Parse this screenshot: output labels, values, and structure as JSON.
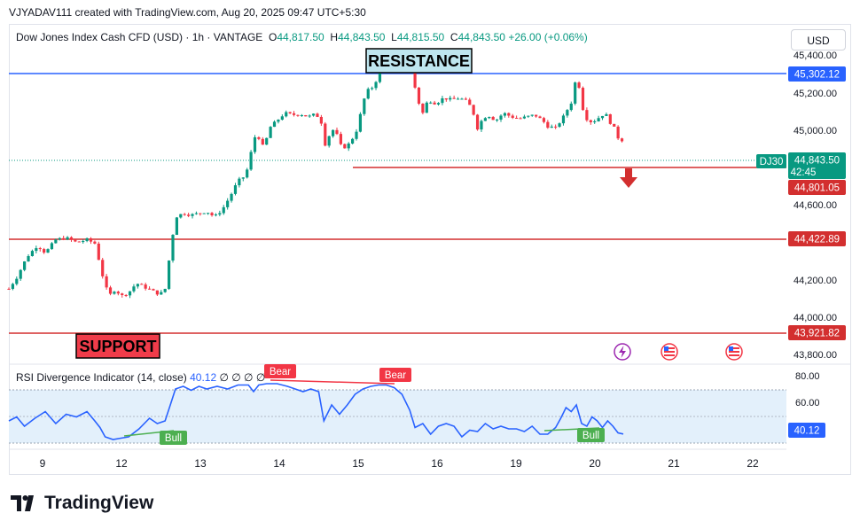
{
  "header": {
    "credit": "VJYADAV111 created with TradingView.com, Aug 20, 2025 09:47 UTC+5:30",
    "currency_button": "USD"
  },
  "legend": {
    "symbol": "Dow Jones Index Cash CFD (USD) · 1h · VANTAGE",
    "open_label": "O",
    "open": "44,817.50",
    "high_label": "H",
    "high": "44,843.50",
    "low_label": "L",
    "low": "44,815.50",
    "close_label": "C",
    "close": "44,843.50",
    "change": "+26.00 (+0.06%)"
  },
  "annotations": {
    "resistance": "RESISTANCE",
    "support": "SUPPORT"
  },
  "price_tags": {
    "resistance": "45,302.12",
    "symbol": "DJ30",
    "last_price": "44,843.50",
    "countdown": "42:45",
    "breakdown": "44,801.05",
    "mid_level": "44,422.89",
    "support": "43,921.82",
    "rsi_value": "40.12"
  },
  "rsi_legend": {
    "title": "RSI Divergence Indicator (14, close)",
    "value": "40.12",
    "extras": "∅ ∅ ∅ ∅"
  },
  "brand": {
    "name": "TradingView"
  },
  "colors": {
    "up": "#089981",
    "down": "#f23645",
    "resistance_line": "#2962ff",
    "level_line": "#d32f2f",
    "rsi_line": "#2962ff",
    "bull": "#4caf50",
    "bear": "#f23645"
  },
  "chart_data": [
    {
      "type": "candlestick",
      "title": "Dow Jones Index Cash CFD (USD) · 1h · VANTAGE",
      "x_ticks": [
        "9",
        "12",
        "13",
        "14",
        "15",
        "16",
        "19",
        "20",
        "21",
        "22"
      ],
      "y_ticks": [
        "45,400.00",
        "45,200.00",
        "45,000.00",
        "44,600.00",
        "44,200.00",
        "44,000.00",
        "43,800.00"
      ],
      "ylim": [
        43750,
        45470
      ],
      "levels": [
        {
          "name": "RESISTANCE",
          "value": 45302.12
        },
        {
          "name": "breakdown",
          "value": 44801.05
        },
        {
          "name": "level",
          "value": 44422.89
        },
        {
          "name": "SUPPORT",
          "value": 43921.82
        }
      ],
      "last_price": 44843.5,
      "path": [
        [
          0,
          44050
        ],
        [
          6,
          44110
        ],
        [
          14,
          44220
        ],
        [
          22,
          44280
        ],
        [
          28,
          44240
        ],
        [
          36,
          44310
        ],
        [
          44,
          44320
        ],
        [
          52,
          44295
        ],
        [
          60,
          44310
        ],
        [
          66,
          44290
        ],
        [
          70,
          44180
        ],
        [
          74,
          44060
        ],
        [
          78,
          44020
        ],
        [
          82,
          44050
        ],
        [
          86,
          44010
        ],
        [
          92,
          44030
        ],
        [
          98,
          44080
        ],
        [
          104,
          44060
        ],
        [
          110,
          44040
        ],
        [
          116,
          44020
        ],
        [
          120,
          44050
        ],
        [
          124,
          44250
        ],
        [
          128,
          44430
        ],
        [
          134,
          44450
        ],
        [
          140,
          44440
        ],
        [
          146,
          44450
        ],
        [
          152,
          44460
        ],
        [
          158,
          44430
        ],
        [
          164,
          44470
        ],
        [
          170,
          44540
        ],
        [
          176,
          44620
        ],
        [
          182,
          44650
        ],
        [
          186,
          44770
        ],
        [
          190,
          44880
        ],
        [
          196,
          44790
        ],
        [
          200,
          44900
        ],
        [
          206,
          44940
        ],
        [
          212,
          44980
        ],
        [
          218,
          44970
        ],
        [
          224,
          44975
        ],
        [
          230,
          44960
        ],
        [
          236,
          44975
        ],
        [
          240,
          44930
        ],
        [
          242,
          44800
        ],
        [
          246,
          44860
        ],
        [
          250,
          44900
        ],
        [
          256,
          44790
        ],
        [
          262,
          44820
        ],
        [
          268,
          44900
        ],
        [
          272,
          45040
        ],
        [
          276,
          45100
        ],
        [
          280,
          45120
        ],
        [
          284,
          45180
        ],
        [
          290,
          45230
        ],
        [
          296,
          45280
        ],
        [
          302,
          45260
        ],
        [
          306,
          45220
        ],
        [
          310,
          45180
        ],
        [
          314,
          45050
        ],
        [
          318,
          44980
        ],
        [
          322,
          45050
        ],
        [
          328,
          45030
        ],
        [
          334,
          45060
        ],
        [
          340,
          45050
        ],
        [
          346,
          45060
        ],
        [
          352,
          45040
        ],
        [
          356,
          45000
        ],
        [
          360,
          44900
        ],
        [
          364,
          44950
        ],
        [
          368,
          44970
        ],
        [
          374,
          44940
        ],
        [
          380,
          44980
        ],
        [
          386,
          44960
        ],
        [
          392,
          44950
        ],
        [
          398,
          44960
        ],
        [
          404,
          44970
        ],
        [
          410,
          44940
        ],
        [
          414,
          44910
        ],
        [
          420,
          44900
        ],
        [
          426,
          44960
        ],
        [
          430,
          45010
        ],
        [
          434,
          45060
        ],
        [
          436,
          45220
        ],
        [
          440,
          45020
        ],
        [
          444,
          44950
        ],
        [
          448,
          44930
        ],
        [
          454,
          44960
        ],
        [
          458,
          44980
        ],
        [
          462,
          44930
        ],
        [
          466,
          44890
        ],
        [
          468,
          44850
        ],
        [
          470,
          44830
        ],
        [
          472,
          44843.5
        ]
      ]
    },
    {
      "type": "line",
      "title": "RSI Divergence Indicator (14, close)",
      "y_ticks": [
        "80.00",
        "60.00"
      ],
      "ylim": [
        28,
        84
      ],
      "upper_band": 70,
      "lower_band": 30,
      "last_value": 40.12,
      "divergence_labels": [
        "Bull",
        "Bull",
        "Bear",
        "Bear"
      ],
      "path": [
        [
          0,
          50
        ],
        [
          6,
          53
        ],
        [
          12,
          46
        ],
        [
          20,
          52
        ],
        [
          28,
          57
        ],
        [
          36,
          48
        ],
        [
          44,
          55
        ],
        [
          52,
          53
        ],
        [
          60,
          57
        ],
        [
          66,
          50
        ],
        [
          70,
          45
        ],
        [
          74,
          38
        ],
        [
          80,
          36
        ],
        [
          86,
          37
        ],
        [
          92,
          38
        ],
        [
          100,
          44
        ],
        [
          108,
          52
        ],
        [
          114,
          48
        ],
        [
          120,
          50
        ],
        [
          124,
          62
        ],
        [
          128,
          74
        ],
        [
          134,
          76
        ],
        [
          140,
          73
        ],
        [
          146,
          76
        ],
        [
          152,
          74
        ],
        [
          160,
          76
        ],
        [
          168,
          74
        ],
        [
          176,
          77
        ],
        [
          184,
          77
        ],
        [
          188,
          72
        ],
        [
          192,
          77
        ],
        [
          198,
          78
        ],
        [
          206,
          78
        ],
        [
          214,
          76
        ],
        [
          220,
          74
        ],
        [
          226,
          72
        ],
        [
          232,
          74
        ],
        [
          238,
          72
        ],
        [
          242,
          50
        ],
        [
          248,
          62
        ],
        [
          254,
          55
        ],
        [
          260,
          62
        ],
        [
          266,
          70
        ],
        [
          272,
          74
        ],
        [
          278,
          76
        ],
        [
          284,
          77
        ],
        [
          290,
          77
        ],
        [
          296,
          75
        ],
        [
          302,
          70
        ],
        [
          308,
          58
        ],
        [
          312,
          45
        ],
        [
          318,
          48
        ],
        [
          324,
          40
        ],
        [
          330,
          46
        ],
        [
          336,
          48
        ],
        [
          342,
          46
        ],
        [
          348,
          38
        ],
        [
          354,
          43
        ],
        [
          360,
          42
        ],
        [
          366,
          48
        ],
        [
          372,
          44
        ],
        [
          378,
          46
        ],
        [
          384,
          44
        ],
        [
          390,
          44
        ],
        [
          396,
          42
        ],
        [
          402,
          46
        ],
        [
          408,
          40
        ],
        [
          414,
          40
        ],
        [
          420,
          45
        ],
        [
          424,
          52
        ],
        [
          428,
          60
        ],
        [
          432,
          57
        ],
        [
          436,
          62
        ],
        [
          440,
          48
        ],
        [
          444,
          46
        ],
        [
          448,
          53
        ],
        [
          452,
          50
        ],
        [
          456,
          45
        ],
        [
          460,
          50
        ],
        [
          464,
          46
        ],
        [
          468,
          41
        ],
        [
          472,
          40.12
        ]
      ]
    }
  ]
}
